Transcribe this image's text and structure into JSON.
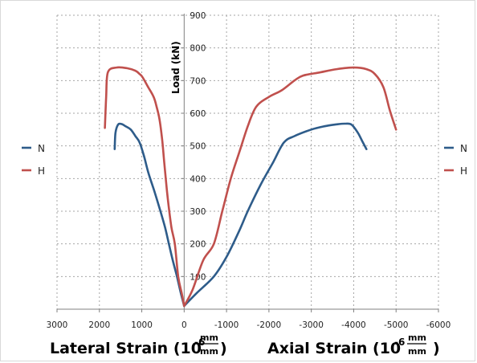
{
  "chart_data": {
    "type": "line",
    "x_axis": {
      "range": [
        3000,
        -6000
      ],
      "ticks": [
        "3000",
        "2000",
        "1000",
        "0",
        "-1000",
        "-2000",
        "-3000",
        "-4000",
        "-5000",
        "-6000"
      ],
      "grid": true
    },
    "y_axis": {
      "label": "Load (kN)",
      "range": [
        0,
        900
      ],
      "ticks": [
        "100",
        "200",
        "300",
        "400",
        "500",
        "600",
        "700",
        "800",
        "900"
      ],
      "grid": true
    },
    "left_caption": {
      "text": "Lateral Strain (10",
      "exp": "-6",
      "num": "mm",
      "den": "mm",
      "close": ")"
    },
    "right_caption": {
      "text": "Axial Strain (10",
      "exp": "-6",
      "num": "mm",
      "den": "mm",
      "close": ")"
    },
    "legend_left": [
      {
        "name": "N",
        "color": "#2E5C8A"
      },
      {
        "name": "H",
        "color": "#C0504D"
      }
    ],
    "legend_right": [
      {
        "name": "N",
        "color": "#2E5C8A"
      },
      {
        "name": "H",
        "color": "#C0504D"
      }
    ],
    "series": [
      {
        "name": "N",
        "part": "lateral",
        "color": "#2E5C8A",
        "x": [
          0,
          80,
          170,
          270,
          360,
          450,
          560,
          700,
          850,
          950,
          1050,
          1150,
          1260,
          1380,
          1480,
          1560,
          1620,
          1640
        ],
        "y": [
          10,
          50,
          100,
          150,
          200,
          250,
          300,
          360,
          420,
          470,
          510,
          530,
          550,
          560,
          567,
          565,
          540,
          490
        ]
      },
      {
        "name": "N",
        "part": "axial",
        "color": "#2E5C8A",
        "x": [
          0,
          -300,
          -700,
          -1000,
          -1300,
          -1500,
          -1800,
          -2100,
          -2350,
          -2600,
          -3000,
          -3300,
          -3600,
          -3800,
          -3950,
          -4100,
          -4200,
          -4300
        ],
        "y": [
          10,
          50,
          100,
          160,
          240,
          300,
          380,
          450,
          510,
          530,
          550,
          560,
          566,
          568,
          565,
          540,
          515,
          490
        ]
      },
      {
        "name": "H",
        "part": "lateral",
        "color": "#C0504D",
        "x": [
          0,
          60,
          140,
          220,
          300,
          370,
          420,
          470,
          520,
          580,
          650,
          720,
          850,
          980,
          1050,
          1150,
          1350,
          1600,
          1800,
          1840,
          1870
        ],
        "y": [
          10,
          50,
          100,
          200,
          250,
          320,
          380,
          450,
          520,
          580,
          620,
          650,
          680,
          710,
          720,
          730,
          738,
          740,
          725,
          650,
          555
        ]
      },
      {
        "name": "H",
        "part": "axial",
        "color": "#C0504D",
        "x": [
          0,
          -200,
          -450,
          -700,
          -900,
          -1100,
          -1300,
          -1500,
          -1700,
          -2000,
          -2300,
          -2600,
          -2800,
          -3200,
          -3600,
          -4000,
          -4300,
          -4500,
          -4700,
          -4850,
          -5000
        ],
        "y": [
          10,
          60,
          150,
          200,
          300,
          400,
          480,
          560,
          620,
          650,
          670,
          700,
          715,
          725,
          735,
          740,
          735,
          720,
          680,
          610,
          550
        ]
      }
    ]
  }
}
